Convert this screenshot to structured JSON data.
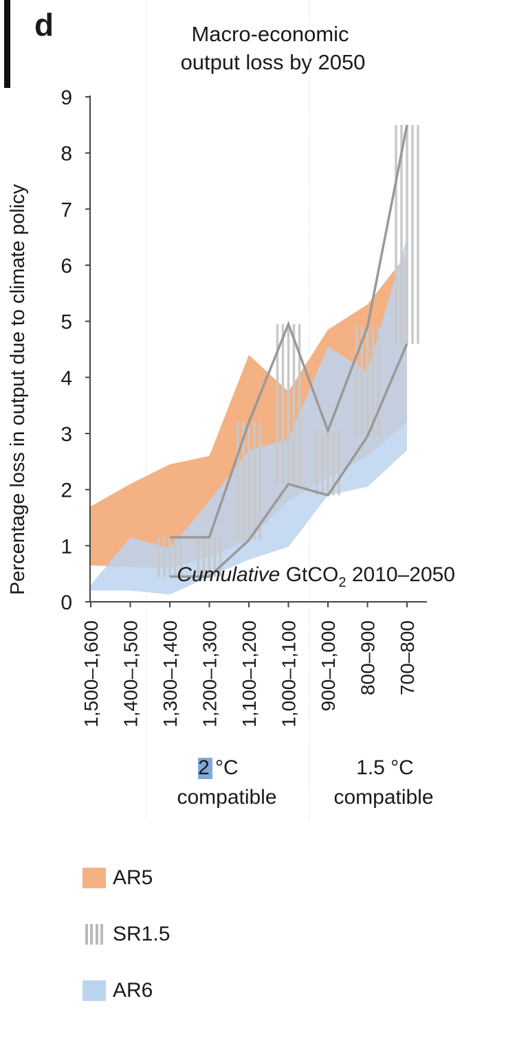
{
  "panel_letter": "d",
  "chart_data": {
    "type": "area",
    "title_lines": [
      "Macro-economic",
      "output loss by 2050"
    ],
    "ylabel": "Percentage loss in output due to climate policy",
    "xlabel_parts": {
      "italic": "Cumulative",
      "base": " GtCO",
      "subscript": "2",
      "tail": " 2010–2050"
    },
    "ylim": [
      0,
      9
    ],
    "yticks": [
      0,
      1,
      2,
      3,
      4,
      5,
      6,
      7,
      8,
      9
    ],
    "categories": [
      "1,500–1,600",
      "1,400–1,500",
      "1,300–1,400",
      "1,200–1,300",
      "1,100–1,200",
      "1,000–1,100",
      "900–1,000",
      "800–900",
      "700–800"
    ],
    "groups": [
      {
        "label_lines": [
          "2 °C",
          "compatible"
        ],
        "highlight": "2",
        "from_index": 2,
        "to_index": 5
      },
      {
        "label_lines": [
          "1.5 °C",
          "compatible"
        ],
        "from_index": 6,
        "to_index": 8
      }
    ],
    "series": [
      {
        "name": "AR5",
        "kind": "band",
        "color": "#f4b183",
        "low": [
          0.65,
          0.62,
          0.6,
          0.8,
          1.1,
          1.8,
          2.2,
          2.6,
          3.2
        ],
        "high": [
          1.7,
          2.1,
          2.45,
          2.6,
          4.4,
          3.75,
          4.85,
          5.3,
          6.2
        ]
      },
      {
        "name": "AR6",
        "kind": "band",
        "color": "#bcd4ee",
        "low": [
          0.2,
          0.2,
          0.13,
          0.45,
          0.75,
          0.98,
          1.9,
          2.05,
          2.7
        ],
        "high": [
          0.3,
          1.15,
          0.95,
          1.8,
          2.7,
          2.9,
          4.55,
          4.1,
          6.5
        ]
      },
      {
        "name": "SR1.5",
        "kind": "range_lines",
        "color": "#999999",
        "categories_index": [
          2,
          3,
          4,
          5,
          6,
          7,
          8
        ],
        "low": [
          0.45,
          0.45,
          1.1,
          2.1,
          1.9,
          2.95,
          4.6
        ],
        "high": [
          1.15,
          1.15,
          3.2,
          4.95,
          3.05,
          4.9,
          8.5
        ]
      }
    ]
  },
  "legend": {
    "items": [
      {
        "label": "AR5",
        "color": "#f4b183"
      },
      {
        "label": "SR1.5",
        "color": "#b9b9b9"
      },
      {
        "label": "AR6",
        "color": "#bcd4ee"
      }
    ]
  }
}
